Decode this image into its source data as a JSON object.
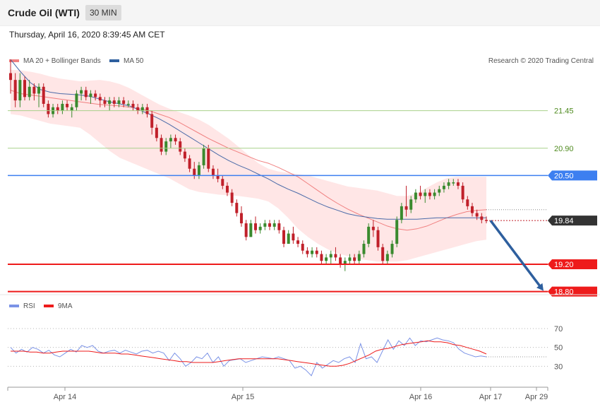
{
  "header": {
    "title": "Crude Oil (WTI)",
    "timeframe": "30 MIN"
  },
  "timestamp": "Thursday, April 16, 2020 8:39:45 AM CET",
  "legend": {
    "ma20": "MA 20 + Bollinger Bands",
    "ma50": "MA 50",
    "credit": "Research © 2020 Trading Central"
  },
  "rsi_legend": {
    "rsi": "RSI",
    "ma9": "9MA"
  },
  "colors": {
    "up_candle": "#3a8a2e",
    "down_candle": "#c0202a",
    "bollinger_fill": "#ffe2e2",
    "ma20": "#f08080",
    "ma50": "#4a6aa8",
    "resistance": "#a8d08a",
    "pivot": "#3d7ff0",
    "support": "#ee1b1b",
    "current": "#333333",
    "arrow": "#2e5f9e",
    "rsi": "#7b93e6",
    "rsi_ma": "#ee1b1b"
  },
  "chart_data": [
    {
      "type": "candlestick",
      "title": "Crude Oil (WTI)",
      "timeframe": "30 MIN",
      "x_ticks": [
        "Apr 14",
        "Apr 15",
        "Apr 16",
        "Apr 17",
        "Apr 29"
      ],
      "ylim": [
        18.6,
        22.45
      ],
      "candles": [
        {
          "o": 22.0,
          "h": 22.2,
          "l": 21.7,
          "c": 21.9
        },
        {
          "o": 21.9,
          "h": 22.0,
          "l": 21.5,
          "c": 21.6
        },
        {
          "o": 21.6,
          "h": 22.0,
          "l": 21.5,
          "c": 21.9
        },
        {
          "o": 21.9,
          "h": 21.95,
          "l": 21.6,
          "c": 21.65
        },
        {
          "o": 21.65,
          "h": 21.9,
          "l": 21.6,
          "c": 21.8
        },
        {
          "o": 21.8,
          "h": 21.85,
          "l": 21.6,
          "c": 21.7
        },
        {
          "o": 21.7,
          "h": 21.85,
          "l": 21.5,
          "c": 21.8
        },
        {
          "o": 21.8,
          "h": 21.85,
          "l": 21.5,
          "c": 21.55
        },
        {
          "o": 21.55,
          "h": 21.6,
          "l": 21.35,
          "c": 21.4
        },
        {
          "o": 21.4,
          "h": 21.55,
          "l": 21.35,
          "c": 21.5
        },
        {
          "o": 21.5,
          "h": 21.55,
          "l": 21.4,
          "c": 21.45
        },
        {
          "o": 21.45,
          "h": 21.6,
          "l": 21.4,
          "c": 21.55
        },
        {
          "o": 21.55,
          "h": 21.6,
          "l": 21.45,
          "c": 21.5
        },
        {
          "o": 21.45,
          "h": 21.55,
          "l": 21.35,
          "c": 21.5
        },
        {
          "o": 21.5,
          "h": 21.75,
          "l": 21.45,
          "c": 21.7
        },
        {
          "o": 21.7,
          "h": 21.8,
          "l": 21.6,
          "c": 21.75
        },
        {
          "o": 21.75,
          "h": 21.8,
          "l": 21.6,
          "c": 21.65
        },
        {
          "o": 21.65,
          "h": 21.75,
          "l": 21.55,
          "c": 21.7
        },
        {
          "o": 21.7,
          "h": 21.75,
          "l": 21.6,
          "c": 21.65
        },
        {
          "o": 21.65,
          "h": 21.7,
          "l": 21.5,
          "c": 21.6
        },
        {
          "o": 21.6,
          "h": 21.65,
          "l": 21.5,
          "c": 21.55
        },
        {
          "o": 21.55,
          "h": 21.65,
          "l": 21.45,
          "c": 21.6
        },
        {
          "o": 21.6,
          "h": 21.65,
          "l": 21.5,
          "c": 21.55
        },
        {
          "o": 21.55,
          "h": 21.65,
          "l": 21.5,
          "c": 21.6
        },
        {
          "o": 21.6,
          "h": 21.65,
          "l": 21.5,
          "c": 21.55
        },
        {
          "o": 21.55,
          "h": 21.6,
          "l": 21.5,
          "c": 21.55
        },
        {
          "o": 21.55,
          "h": 21.6,
          "l": 21.45,
          "c": 21.5
        },
        {
          "o": 21.5,
          "h": 21.55,
          "l": 21.4,
          "c": 21.45
        },
        {
          "o": 21.45,
          "h": 21.55,
          "l": 21.4,
          "c": 21.5
        },
        {
          "o": 21.5,
          "h": 21.55,
          "l": 21.35,
          "c": 21.4
        },
        {
          "o": 21.4,
          "h": 21.45,
          "l": 21.1,
          "c": 21.2
        },
        {
          "o": 21.2,
          "h": 21.25,
          "l": 21.0,
          "c": 21.05
        },
        {
          "o": 21.05,
          "h": 21.1,
          "l": 20.8,
          "c": 20.85
        },
        {
          "o": 20.85,
          "h": 21.05,
          "l": 20.8,
          "c": 21.0
        },
        {
          "o": 21.0,
          "h": 21.1,
          "l": 20.9,
          "c": 21.05
        },
        {
          "o": 21.05,
          "h": 21.1,
          "l": 20.95,
          "c": 21.0
        },
        {
          "o": 21.0,
          "h": 21.05,
          "l": 20.8,
          "c": 20.85
        },
        {
          "o": 20.85,
          "h": 20.9,
          "l": 20.7,
          "c": 20.75
        },
        {
          "o": 20.75,
          "h": 20.8,
          "l": 20.55,
          "c": 20.6
        },
        {
          "o": 20.6,
          "h": 20.7,
          "l": 20.45,
          "c": 20.5
        },
        {
          "o": 20.5,
          "h": 20.7,
          "l": 20.45,
          "c": 20.65
        },
        {
          "o": 20.65,
          "h": 20.95,
          "l": 20.6,
          "c": 20.9
        },
        {
          "o": 20.9,
          "h": 20.95,
          "l": 20.55,
          "c": 20.6
        },
        {
          "o": 20.6,
          "h": 20.65,
          "l": 20.45,
          "c": 20.5
        },
        {
          "o": 20.5,
          "h": 20.6,
          "l": 20.4,
          "c": 20.45
        },
        {
          "o": 20.45,
          "h": 20.5,
          "l": 20.3,
          "c": 20.35
        },
        {
          "o": 20.35,
          "h": 20.4,
          "l": 20.2,
          "c": 20.25
        },
        {
          "o": 20.25,
          "h": 20.3,
          "l": 20.05,
          "c": 20.1
        },
        {
          "o": 20.1,
          "h": 20.15,
          "l": 19.9,
          "c": 19.95
        },
        {
          "o": 19.95,
          "h": 20.05,
          "l": 19.75,
          "c": 19.8
        },
        {
          "o": 19.8,
          "h": 19.85,
          "l": 19.55,
          "c": 19.6
        },
        {
          "o": 19.6,
          "h": 19.85,
          "l": 19.6,
          "c": 19.8
        },
        {
          "o": 19.8,
          "h": 19.9,
          "l": 19.65,
          "c": 19.7
        },
        {
          "o": 19.7,
          "h": 19.8,
          "l": 19.65,
          "c": 19.75
        },
        {
          "o": 19.75,
          "h": 19.85,
          "l": 19.7,
          "c": 19.8
        },
        {
          "o": 19.8,
          "h": 19.85,
          "l": 19.7,
          "c": 19.75
        },
        {
          "o": 19.75,
          "h": 19.85,
          "l": 19.7,
          "c": 19.8
        },
        {
          "o": 19.8,
          "h": 19.85,
          "l": 19.65,
          "c": 19.7
        },
        {
          "o": 19.7,
          "h": 19.75,
          "l": 19.45,
          "c": 19.5
        },
        {
          "o": 19.5,
          "h": 19.7,
          "l": 19.5,
          "c": 19.65
        },
        {
          "o": 19.65,
          "h": 19.75,
          "l": 19.5,
          "c": 19.55
        },
        {
          "o": 19.55,
          "h": 19.6,
          "l": 19.45,
          "c": 19.5
        },
        {
          "o": 19.5,
          "h": 19.55,
          "l": 19.35,
          "c": 19.4
        },
        {
          "o": 19.4,
          "h": 19.45,
          "l": 19.3,
          "c": 19.35
        },
        {
          "o": 19.35,
          "h": 19.45,
          "l": 19.3,
          "c": 19.4
        },
        {
          "o": 19.4,
          "h": 19.45,
          "l": 19.3,
          "c": 19.35
        },
        {
          "o": 19.35,
          "h": 19.4,
          "l": 19.2,
          "c": 19.25
        },
        {
          "o": 19.25,
          "h": 19.35,
          "l": 19.2,
          "c": 19.3
        },
        {
          "o": 19.3,
          "h": 19.4,
          "l": 19.2,
          "c": 19.35
        },
        {
          "o": 19.35,
          "h": 19.45,
          "l": 19.25,
          "c": 19.3
        },
        {
          "o": 19.3,
          "h": 19.35,
          "l": 19.15,
          "c": 19.2
        },
        {
          "o": 19.2,
          "h": 19.3,
          "l": 19.1,
          "c": 19.25
        },
        {
          "o": 19.25,
          "h": 19.35,
          "l": 19.2,
          "c": 19.3
        },
        {
          "o": 19.3,
          "h": 19.35,
          "l": 19.2,
          "c": 19.25
        },
        {
          "o": 19.25,
          "h": 19.4,
          "l": 19.2,
          "c": 19.35
        },
        {
          "o": 19.35,
          "h": 19.55,
          "l": 19.3,
          "c": 19.5
        },
        {
          "o": 19.5,
          "h": 19.8,
          "l": 19.45,
          "c": 19.75
        },
        {
          "o": 19.75,
          "h": 19.85,
          "l": 19.6,
          "c": 19.7
        },
        {
          "o": 19.7,
          "h": 19.75,
          "l": 19.4,
          "c": 19.45
        },
        {
          "o": 19.45,
          "h": 19.5,
          "l": 19.2,
          "c": 19.25
        },
        {
          "o": 19.25,
          "h": 19.4,
          "l": 19.2,
          "c": 19.35
        },
        {
          "o": 19.35,
          "h": 19.55,
          "l": 19.3,
          "c": 19.5
        },
        {
          "o": 19.5,
          "h": 19.9,
          "l": 19.45,
          "c": 19.85
        },
        {
          "o": 19.85,
          "h": 20.1,
          "l": 19.8,
          "c": 20.05
        },
        {
          "o": 20.05,
          "h": 20.35,
          "l": 19.9,
          "c": 20.0
        },
        {
          "o": 20.0,
          "h": 20.2,
          "l": 19.95,
          "c": 20.15
        },
        {
          "o": 20.15,
          "h": 20.3,
          "l": 20.1,
          "c": 20.25
        },
        {
          "o": 20.25,
          "h": 20.35,
          "l": 20.15,
          "c": 20.2
        },
        {
          "o": 20.2,
          "h": 20.3,
          "l": 20.1,
          "c": 20.25
        },
        {
          "o": 20.25,
          "h": 20.3,
          "l": 20.15,
          "c": 20.2
        },
        {
          "o": 20.2,
          "h": 20.3,
          "l": 20.15,
          "c": 20.25
        },
        {
          "o": 20.25,
          "h": 20.35,
          "l": 20.2,
          "c": 20.3
        },
        {
          "o": 20.3,
          "h": 20.4,
          "l": 20.25,
          "c": 20.35
        },
        {
          "o": 20.35,
          "h": 20.45,
          "l": 20.3,
          "c": 20.4
        },
        {
          "o": 20.4,
          "h": 20.45,
          "l": 20.35,
          "c": 20.4
        },
        {
          "o": 20.4,
          "h": 20.45,
          "l": 20.3,
          "c": 20.35
        },
        {
          "o": 20.35,
          "h": 20.4,
          "l": 20.1,
          "c": 20.15
        },
        {
          "o": 20.15,
          "h": 20.2,
          "l": 20.0,
          "c": 20.05
        },
        {
          "o": 20.05,
          "h": 20.1,
          "l": 19.9,
          "c": 19.95
        },
        {
          "o": 19.95,
          "h": 20.0,
          "l": 19.85,
          "c": 19.9
        },
        {
          "o": 19.9,
          "h": 19.95,
          "l": 19.8,
          "c": 19.85
        },
        {
          "o": 19.85,
          "h": 19.9,
          "l": 19.8,
          "c": 19.84
        }
      ],
      "ma20_values": [
        21.75,
        21.7,
        21.68,
        21.66,
        21.64,
        21.62,
        21.6,
        21.58,
        21.56,
        21.54,
        21.53,
        21.52,
        21.5,
        21.48,
        21.45,
        21.4,
        21.35,
        21.28,
        21.2,
        21.12,
        21.04,
        20.97,
        20.9,
        20.84,
        20.78,
        20.72,
        20.68,
        20.62,
        20.55,
        20.48,
        20.38,
        20.28,
        20.18,
        20.09,
        20.01,
        19.94,
        19.88,
        19.82,
        19.76,
        19.72,
        19.7,
        19.72,
        19.76,
        19.82,
        19.88,
        19.93,
        19.97,
        19.99,
        20.0
      ],
      "bollinger_upper": [
        22.05,
        22.04,
        22.02,
        21.99,
        21.95,
        21.92,
        21.9,
        21.88,
        21.89,
        21.9,
        21.88,
        21.84,
        21.78,
        21.7,
        21.62,
        21.54,
        21.48,
        21.43,
        21.38,
        21.32,
        21.24,
        21.14,
        21.04,
        20.92,
        20.8,
        20.68,
        20.6,
        20.56,
        20.54,
        20.52,
        20.5,
        20.46,
        20.42,
        20.38,
        20.34,
        20.32,
        20.3,
        20.28,
        20.24,
        20.2,
        20.2,
        20.24,
        20.32,
        20.4,
        20.46,
        20.48,
        20.48,
        20.48,
        20.48
      ],
      "bollinger_lower": [
        21.4,
        21.38,
        21.34,
        21.3,
        21.26,
        21.24,
        21.22,
        21.2,
        21.1,
        20.98,
        20.86,
        20.76,
        20.7,
        20.64,
        20.58,
        20.52,
        20.46,
        20.38,
        20.3,
        20.26,
        20.24,
        20.22,
        20.21,
        20.2,
        20.18,
        20.16,
        20.12,
        20.02,
        19.88,
        19.72,
        19.6,
        19.5,
        19.42,
        19.36,
        19.32,
        19.28,
        19.26,
        19.24,
        19.24,
        19.24,
        19.26,
        19.3,
        19.34,
        19.38,
        19.42,
        19.46,
        19.5,
        19.54,
        19.56
      ],
      "ma50_values": [
        22.2,
        22.02,
        21.86,
        21.76,
        21.72,
        21.7,
        21.69,
        21.68,
        21.66,
        21.62,
        21.58,
        21.55,
        21.52,
        21.46,
        21.4,
        21.33,
        21.25,
        21.16,
        21.07,
        20.98,
        20.89,
        20.8,
        20.72,
        20.65,
        20.59,
        20.52,
        20.45,
        20.37,
        20.3,
        20.24,
        20.17,
        20.1,
        20.04,
        19.99,
        19.94,
        19.91,
        19.89,
        19.87,
        19.86,
        19.86,
        19.86,
        19.86,
        19.87,
        19.88,
        19.88,
        19.88,
        19.88,
        19.88,
        19.88
      ],
      "levels": [
        {
          "label": "21.45",
          "value": 21.45,
          "kind": "resistance"
        },
        {
          "label": "20.90",
          "value": 20.9,
          "kind": "resistance"
        },
        {
          "label": "20.50",
          "value": 20.5,
          "kind": "pivot"
        },
        {
          "label": "19.84",
          "value": 19.84,
          "kind": "current"
        },
        {
          "label": "19.20",
          "value": 19.2,
          "kind": "support"
        },
        {
          "label": "18.80",
          "value": 18.8,
          "kind": "support"
        }
      ],
      "projection": {
        "from": 19.84,
        "to": 18.8
      }
    },
    {
      "type": "line",
      "title": "RSI",
      "ylim": [
        10,
        85
      ],
      "y_ticks": [
        70,
        50,
        30
      ],
      "series": [
        {
          "name": "RSI",
          "values": [
            50,
            44,
            48,
            45,
            50,
            48,
            44,
            47,
            42,
            40,
            44,
            48,
            45,
            52,
            50,
            52,
            46,
            44,
            46,
            47,
            44,
            47,
            45,
            43,
            46,
            47,
            44,
            46,
            44,
            36,
            44,
            38,
            30,
            34,
            40,
            38,
            44,
            34,
            40,
            30,
            36,
            37,
            38,
            34,
            36,
            38,
            40,
            39,
            38,
            40,
            38,
            36,
            28,
            30,
            26,
            20,
            34,
            28,
            32,
            36,
            34,
            38,
            40,
            34,
            54,
            38,
            40,
            34,
            46,
            58,
            48,
            57,
            52,
            60,
            52,
            57,
            56,
            58,
            60,
            58,
            57,
            55,
            48,
            44,
            42,
            40,
            41,
            40
          ]
        },
        {
          "name": "9MA",
          "values": [
            46,
            46,
            46,
            45,
            45,
            44,
            44,
            45,
            46,
            46,
            46,
            46,
            46,
            45,
            44,
            44,
            44,
            43,
            43,
            42,
            41,
            40,
            39,
            38,
            37,
            36,
            35,
            35,
            34,
            34,
            34,
            34,
            35,
            36,
            37,
            38,
            38,
            38,
            38,
            38,
            38,
            38,
            37,
            36,
            35,
            34,
            33,
            32,
            31,
            30,
            30,
            31,
            33,
            36,
            39,
            42,
            46,
            48,
            49,
            51,
            53,
            54,
            55,
            56,
            57,
            56,
            56,
            55,
            53,
            52,
            50,
            48,
            46,
            43
          ]
        }
      ]
    }
  ]
}
